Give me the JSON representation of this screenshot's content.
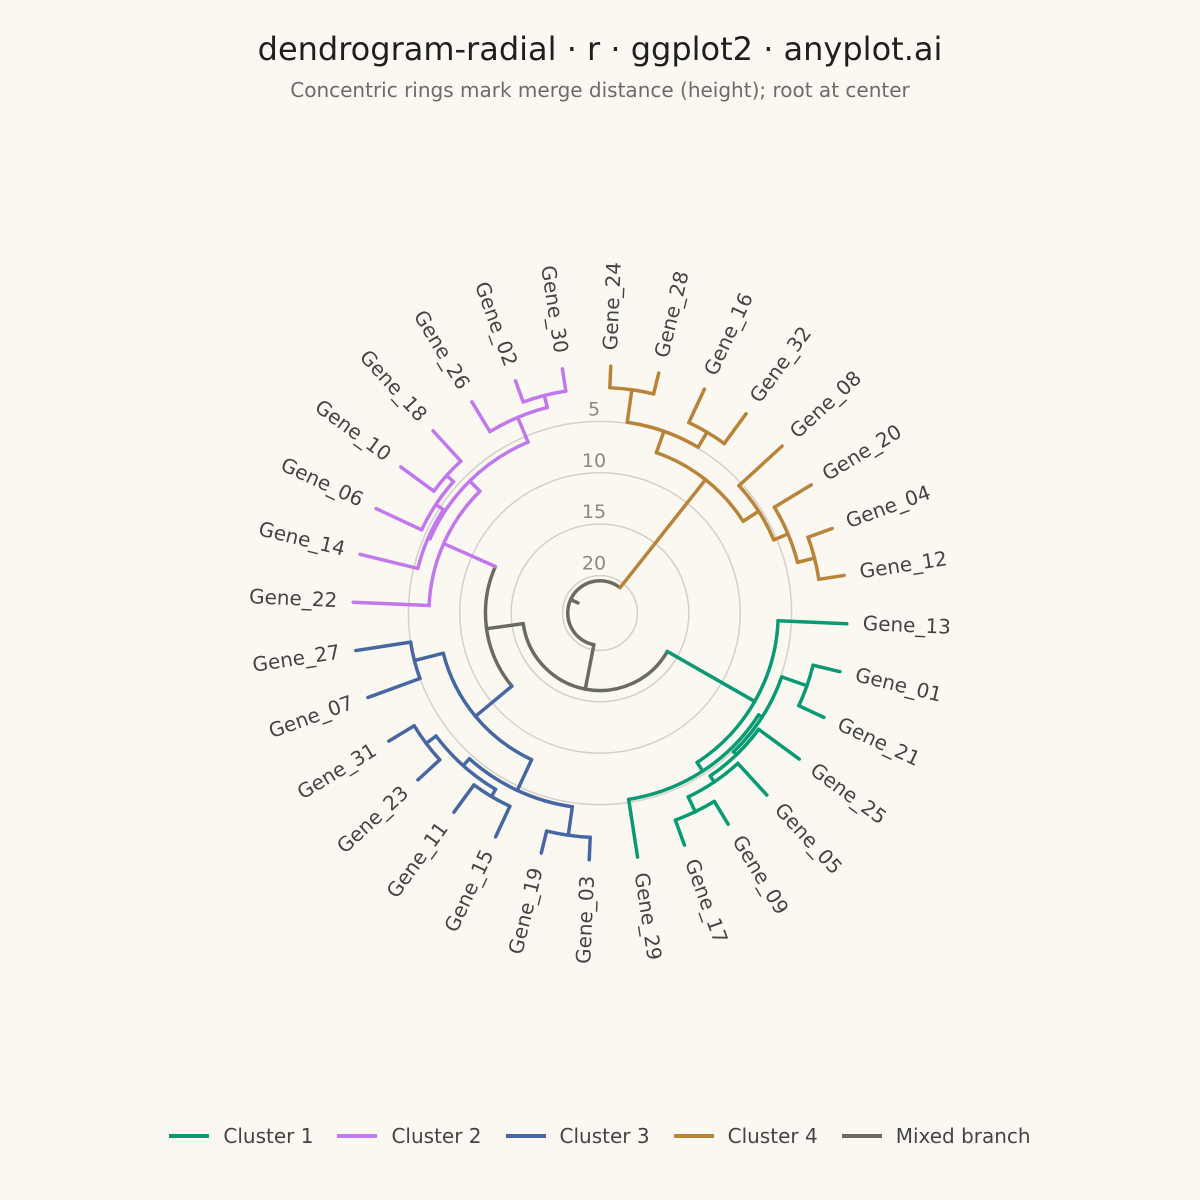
{
  "title": "dendrogram-radial · r · ggplot2 · anyplot.ai",
  "subtitle": "Concentric rings mark merge distance (height); root at center",
  "colors": {
    "c1": "#0A9A73",
    "c2": "#C178EE",
    "c3": "#4767A2",
    "c4": "#B8843A",
    "mixed": "#6B6B65",
    "ring": "#D3D0C9",
    "tick": "#8A8A85",
    "label": "#444444"
  },
  "legend": [
    {
      "label": "Cluster 1",
      "color": "#0A9A73"
    },
    {
      "label": "Cluster 2",
      "color": "#C178EE"
    },
    {
      "label": "Cluster 3",
      "color": "#4767A2"
    },
    {
      "label": "Cluster 4",
      "color": "#B8843A"
    },
    {
      "label": "Mixed branch",
      "color": "#6B6B65"
    }
  ],
  "chart_data": {
    "type": "dendrogram-radial",
    "ring_heights": [
      5,
      10,
      15,
      20
    ],
    "ring_labels": [
      "5",
      "10",
      "15",
      "20"
    ],
    "max_height": 21.5,
    "leaves": [
      "Gene_13",
      "Gene_01",
      "Gene_21",
      "Gene_25",
      "Gene_05",
      "Gene_09",
      "Gene_17",
      "Gene_29",
      "Gene_03",
      "Gene_19",
      "Gene_15",
      "Gene_11",
      "Gene_23",
      "Gene_31",
      "Gene_07",
      "Gene_27",
      "Gene_22",
      "Gene_14",
      "Gene_06",
      "Gene_10",
      "Gene_18",
      "Gene_26",
      "Gene_02",
      "Gene_30",
      "Gene_24",
      "Gene_28",
      "Gene_16",
      "Gene_32",
      "Gene_08",
      "Gene_20",
      "Gene_04",
      "Gene_12"
    ],
    "leaf_cluster": [
      1,
      1,
      1,
      1,
      1,
      1,
      1,
      1,
      3,
      3,
      3,
      3,
      3,
      3,
      3,
      3,
      2,
      2,
      2,
      2,
      2,
      2,
      2,
      2,
      4,
      4,
      4,
      4,
      4,
      4,
      4,
      4
    ],
    "merges": [
      {
        "id": "a1",
        "children": [
          "Gene_09",
          "Gene_17"
        ],
        "height": 2.2,
        "cluster": 1
      },
      {
        "id": "a2",
        "children": [
          "Gene_05",
          "a1"
        ],
        "height": 3.8,
        "cluster": 1
      },
      {
        "id": "a3",
        "children": [
          "Gene_25",
          "a2"
        ],
        "height": 4.5,
        "cluster": 1
      },
      {
        "id": "a4",
        "children": [
          "Gene_01",
          "Gene_21"
        ],
        "height": 2.3,
        "cluster": 1
      },
      {
        "id": "a5",
        "children": [
          "a4",
          "a3"
        ],
        "height": 4.9,
        "cluster": 1
      },
      {
        "id": "a6",
        "children": [
          "Gene_29",
          "a5"
        ],
        "height": 5.3,
        "cluster": 1
      },
      {
        "id": "a7",
        "children": [
          "Gene_13",
          "a6"
        ],
        "height": 6.3,
        "cluster": 1
      },
      {
        "id": "b1",
        "children": [
          "Gene_03",
          "Gene_19"
        ],
        "height": 1.8,
        "cluster": 3
      },
      {
        "id": "b2",
        "children": [
          "Gene_11",
          "Gene_15"
        ],
        "height": 2.9,
        "cluster": 3
      },
      {
        "id": "b3",
        "children": [
          "Gene_23",
          "Gene_31"
        ],
        "height": 2.5,
        "cluster": 3
      },
      {
        "id": "b4",
        "children": [
          "b3",
          "b2"
        ],
        "height": 3.7,
        "cluster": 3
      },
      {
        "id": "b5",
        "children": [
          "b1",
          "b4"
        ],
        "height": 4.6,
        "cluster": 3
      },
      {
        "id": "b6",
        "children": [
          "Gene_07",
          "Gene_27"
        ],
        "height": 5.0,
        "cluster": 3
      },
      {
        "id": "b7",
        "children": [
          "b5",
          "b6"
        ],
        "height": 7.9,
        "cluster": 3
      },
      {
        "id": "c1",
        "children": [
          "Gene_02",
          "Gene_30"
        ],
        "height": 1.8,
        "cluster": 2
      },
      {
        "id": "c2",
        "children": [
          "Gene_26",
          "c1"
        ],
        "height": 3.0,
        "cluster": 2
      },
      {
        "id": "c3",
        "children": [
          "Gene_10",
          "Gene_18"
        ],
        "height": 3.6,
        "cluster": 2
      },
      {
        "id": "c4",
        "children": [
          "Gene_06",
          "c3"
        ],
        "height": 4.5,
        "cluster": 2
      },
      {
        "id": "c5",
        "children": [
          "Gene_14",
          "c4"
        ],
        "height": 5.4,
        "cluster": 2
      },
      {
        "id": "c6",
        "children": [
          "c5",
          "c2"
        ],
        "height": 5.6,
        "cluster": 2
      },
      {
        "id": "c7",
        "children": [
          "Gene_22",
          "c6"
        ],
        "height": 7.0,
        "cluster": 2
      },
      {
        "id": "d1",
        "children": [
          "Gene_24",
          "Gene_28"
        ],
        "height": 1.7,
        "cluster": 4
      },
      {
        "id": "d2",
        "children": [
          "Gene_16",
          "Gene_32"
        ],
        "height": 3.2,
        "cluster": 4
      },
      {
        "id": "d3",
        "children": [
          "d1",
          "d2"
        ],
        "height": 4.9,
        "cluster": 4
      },
      {
        "id": "d4",
        "children": [
          "Gene_04",
          "Gene_12"
        ],
        "height": 2.1,
        "cluster": 4
      },
      {
        "id": "d5",
        "children": [
          "Gene_20",
          "d4"
        ],
        "height": 3.8,
        "cluster": 4
      },
      {
        "id": "d6",
        "children": [
          "Gene_08",
          "d5"
        ],
        "height": 5.3,
        "cluster": 4
      },
      {
        "id": "d7",
        "children": [
          "d3",
          "d6"
        ],
        "height": 7.1,
        "cluster": 4
      },
      {
        "id": "m1",
        "children": [
          "b7",
          "c7"
        ],
        "height": 12.5,
        "cluster": 0
      },
      {
        "id": "m2",
        "children": [
          "a7",
          "m1"
        ],
        "height": 16.1,
        "cluster": 0
      },
      {
        "id": "m3",
        "children": [
          "m2",
          "d7"
        ],
        "height": 20.5,
        "cluster": 0
      }
    ]
  }
}
